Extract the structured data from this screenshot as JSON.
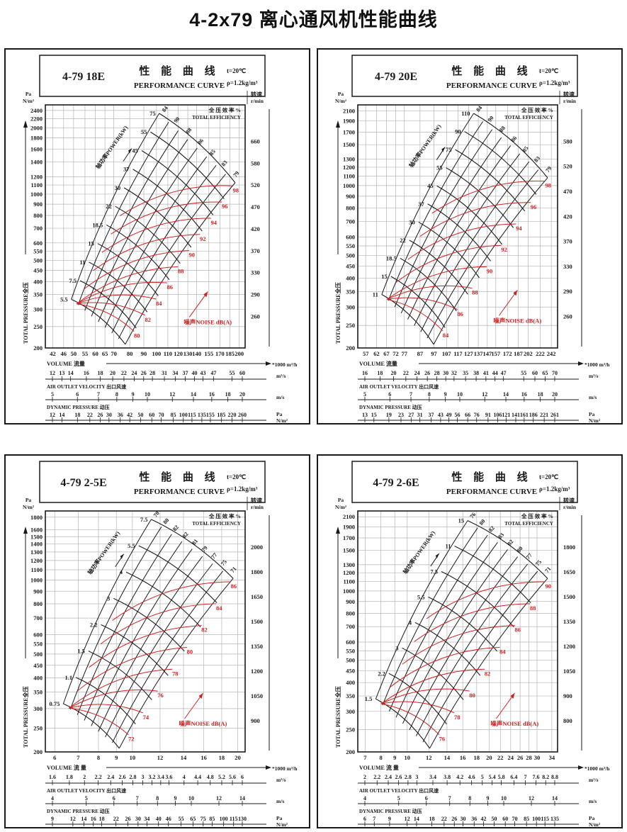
{
  "page": {
    "title": "4-2x79 离心通风机性能曲线"
  },
  "chart_data": [
    {
      "type": "line",
      "model": "4-79 18E",
      "title_cn": "性 能 曲 线",
      "title_en": "PERFORMANCE CURVE",
      "temperature": "t=20℃",
      "density": "ρ=1.2kg/m³",
      "x_scale": "log",
      "y_scale": "log",
      "grid": true,
      "series": [
        {
          "name": "performance-grid (speed/power mesh)",
          "color": "#1a1a1a"
        },
        {
          "name": "noise-contours",
          "color": "#cf2020"
        }
      ],
      "y_axis": {
        "unit_lines": [
          "Pa",
          "N/m²"
        ],
        "label": "TOTAL PRESSURE全压",
        "ticks": [
          2400,
          2200,
          2000,
          1800,
          1600,
          1400,
          1200,
          1100,
          1000,
          900,
          800,
          700,
          600,
          550,
          500,
          450,
          400,
          350,
          300,
          250,
          200
        ]
      },
      "x_axis": {
        "label": "VOLUME  流量",
        "unit": "*1000 m³/h",
        "ticks": [
          42,
          46,
          50,
          55,
          60,
          65,
          70,
          80,
          90,
          100,
          110,
          120,
          130,
          140,
          155,
          170,
          185,
          200
        ]
      },
      "right_axis": {
        "label_cn": "转速",
        "label_en": "r/min",
        "ticks": [
          660,
          580,
          520,
          470,
          420,
          370,
          330,
          290,
          260
        ]
      },
      "efficiency": {
        "header_cn": "全 压 效 率",
        "header_en": "TOTAL EFFICIENCY",
        "unit": "%",
        "labels": [
          "84",
          "90",
          "88",
          "86",
          "85",
          "83",
          "79"
        ]
      },
      "power": {
        "label": "轴功率POWER(kW)",
        "values": [
          "75",
          "55",
          "45",
          "37",
          "30",
          "22",
          "18.5",
          "15",
          "11",
          "7.5",
          "5.5"
        ]
      },
      "noise": {
        "label": "噪声NOISE dB(A)",
        "values": [
          "98",
          "96",
          "94",
          "92",
          "90",
          "88",
          "86",
          "84",
          "82",
          "80"
        ]
      },
      "flow_m3s": {
        "unit": "m³/s",
        "values": [
          12,
          13,
          14,
          16,
          18,
          20,
          22,
          24,
          26,
          28,
          31,
          34,
          37,
          40,
          43,
          47,
          55,
          60
        ]
      },
      "outlet_velocity": {
        "label": "AIR  OUTLET  VELOCITY  出口风速",
        "unit": "m/s",
        "values": [
          5,
          6,
          7,
          8,
          9,
          10,
          12,
          14,
          16,
          18,
          20
        ]
      },
      "dynamic_pressure": {
        "label": "DYNAMIC PRESSURE   动压",
        "unit_lines": [
          "Pa",
          "N/m²"
        ],
        "values": [
          12,
          14,
          18,
          22,
          26,
          30,
          36,
          42,
          50,
          60,
          70,
          85,
          100,
          115,
          135,
          155,
          185,
          220,
          260
        ]
      }
    },
    {
      "type": "line",
      "model": "4-79 20E",
      "title_cn": "性 能 曲 线",
      "title_en": "PERFORMANCE CURVE",
      "temperature": "t=20℃",
      "density": "ρ=1.2kg/m³",
      "x_scale": "log",
      "y_scale": "log",
      "grid": true,
      "series": [
        {
          "name": "performance-grid (speed/power mesh)",
          "color": "#1a1a1a"
        },
        {
          "name": "noise-contours",
          "color": "#cf2020"
        }
      ],
      "y_axis": {
        "unit_lines": [
          "Pa",
          "N/m²"
        ],
        "label": "TOTAL PRESSURE全压",
        "ticks": [
          2100,
          1900,
          1700,
          1500,
          1300,
          1200,
          1100,
          1000,
          900,
          800,
          700,
          600,
          550,
          500,
          450,
          400,
          350,
          300,
          250,
          200
        ]
      },
      "x_axis": {
        "label": "VOLUME  流量",
        "unit": "*1000 m³/h",
        "ticks": [
          57,
          62,
          67,
          72,
          77,
          87,
          97,
          107,
          117,
          127,
          137,
          147,
          157,
          172,
          187,
          202,
          222,
          242
        ]
      },
      "right_axis": {
        "label_cn": "转速",
        "label_en": "r/min",
        "ticks": [
          580,
          520,
          470,
          420,
          370,
          330,
          290,
          260
        ]
      },
      "efficiency": {
        "header_cn": "全 压 效 率",
        "header_en": "TOTAL EFFICIENCY",
        "unit": "%",
        "labels": [
          "84",
          "90",
          "88",
          "86",
          "85",
          "83",
          "79"
        ]
      },
      "power": {
        "label": "轴功率POWER(kW)",
        "values": [
          "110",
          "90",
          "75",
          "55",
          "45",
          "37",
          "30",
          "22",
          "18.5",
          "15",
          "11"
        ]
      },
      "noise": {
        "label": "噪声NOISE dB(A)",
        "values": [
          "98",
          "96",
          "94",
          "92",
          "90",
          "88",
          "86",
          "84"
        ]
      },
      "flow_m3s": {
        "unit": "m³/s",
        "values": [
          16,
          18,
          20,
          22,
          24,
          26,
          28,
          30,
          32,
          35,
          38,
          41,
          44,
          47,
          55,
          60,
          65,
          70
        ]
      },
      "outlet_velocity": {
        "label": "AIR  OUTLET  VELOCITY  出口风速",
        "unit": "m/s",
        "values": [
          5,
          6,
          7,
          8,
          9,
          10,
          12,
          14,
          16,
          18,
          20
        ]
      },
      "dynamic_pressure": {
        "label": "DYNAMIC PRESSURE   动压",
        "unit_lines": [
          "Pa",
          "N/m²"
        ],
        "values": [
          13,
          15,
          19,
          23,
          27,
          31,
          37,
          43,
          49,
          56,
          66,
          76,
          91,
          106,
          121,
          141,
          161,
          186,
          221,
          261
        ]
      }
    },
    {
      "type": "line",
      "model": "4-79 2-5E",
      "title_cn": "性 能 曲 线",
      "title_en": "PERFORMANCE CURVE",
      "temperature": "t=20℃",
      "density": "ρ=1.2kg/m³",
      "x_scale": "log",
      "y_scale": "log",
      "grid": true,
      "series": [
        {
          "name": "performance-grid (speed/power mesh)",
          "color": "#1a1a1a"
        },
        {
          "name": "noise-contours",
          "color": "#cf2020"
        }
      ],
      "y_axis": {
        "unit_lines": [
          "Pa",
          "N/m²"
        ],
        "label": "TOTAL PRESSURE全压",
        "ticks": [
          1800,
          1600,
          1500,
          1400,
          1300,
          1200,
          1100,
          1000,
          900,
          800,
          700,
          600,
          550,
          500,
          450,
          400,
          350,
          300,
          250,
          200
        ]
      },
      "x_axis": {
        "label": "VOLUME  流 量",
        "unit": "*1000 m³/h",
        "ticks": [
          6,
          7,
          8,
          9,
          10,
          12,
          14,
          16,
          18,
          20
        ]
      },
      "right_axis": {
        "label_cn": "转速",
        "label_en": "r/min",
        "ticks": [
          2000,
          1800,
          1650,
          1500,
          1350,
          1200,
          1050,
          900
        ]
      },
      "efficiency": {
        "header_cn": "全 压 效 率",
        "header_en": "TOTAL EFFICIENCY",
        "unit": "%",
        "labels": [
          "70",
          "80",
          "82",
          "82",
          "81",
          "79",
          "77",
          "75",
          "71"
        ]
      },
      "power": {
        "label": "轴功率POWER(kW)",
        "values": [
          "7.5",
          "5.5",
          "4",
          "3",
          "2.2",
          "1.5",
          "1.1",
          "0.75"
        ]
      },
      "noise": {
        "label": "噪声NOISE dB(A)",
        "values": [
          "86",
          "84",
          "82",
          "80",
          "78",
          "76",
          "74",
          "72"
        ]
      },
      "flow_m3s": {
        "unit": "m³/s",
        "values": [
          1.6,
          1.8,
          2,
          2.2,
          2.4,
          2.6,
          2.8,
          3,
          3.2,
          3.4,
          3.6,
          4,
          4.4,
          4.8,
          5.2,
          5.6,
          6
        ]
      },
      "outlet_velocity": {
        "label": "AIR  OUTLET  VELOCITY  出口风速",
        "unit": "m/s",
        "values": [
          4,
          5,
          6,
          7,
          8,
          9,
          10,
          12,
          14
        ]
      },
      "dynamic_pressure": {
        "label": "DYNAMIC PRESSURE   动压",
        "unit_lines": [
          "Pa",
          "N/m²"
        ],
        "values": [
          9,
          12,
          14,
          16,
          18,
          22,
          26,
          30,
          34,
          40,
          46,
          55,
          65,
          75,
          85,
          100,
          115,
          130
        ]
      }
    },
    {
      "type": "line",
      "model": "4-79 2-6E",
      "title_cn": "性 能 曲 线",
      "title_en": "PERFORMANCE CURVE",
      "temperature": "t=20℃",
      "density": "ρ=1.2kg/m³",
      "x_scale": "log",
      "y_scale": "log",
      "grid": true,
      "series": [
        {
          "name": "performance-grid (speed/power mesh)",
          "color": "#1a1a1a"
        },
        {
          "name": "noise-contours",
          "color": "#cf2020"
        }
      ],
      "y_axis": {
        "unit_lines": [
          "Pa",
          "N/m²"
        ],
        "label": "TOTAL PRESSURE全压",
        "ticks": [
          2100,
          1900,
          1700,
          1500,
          1300,
          1200,
          1100,
          1000,
          900,
          800,
          700,
          600,
          550,
          500,
          450,
          400,
          350,
          300,
          250,
          200
        ]
      },
      "x_axis": {
        "label": "VOLUME  流 量",
        "unit": "*1000 m³/h",
        "ticks": [
          7,
          8,
          9,
          10,
          12,
          14,
          16,
          18,
          20,
          22,
          24,
          26,
          28,
          30,
          34
        ]
      },
      "right_axis": {
        "label_cn": "转速",
        "label_en": "r/min",
        "ticks": [
          1800,
          1650,
          1500,
          1350,
          1200,
          1050,
          900,
          800
        ]
      },
      "efficiency": {
        "header_cn": "全 压 效 率",
        "header_en": "TOTAL EFFICIENCY",
        "unit": "%",
        "labels": [
          "76",
          "80",
          "82",
          "83",
          "82",
          "80",
          "77",
          "75",
          "71"
        ]
      },
      "power": {
        "label": "轴功率POWER(kW)",
        "values": [
          "15",
          "11",
          "7.5",
          "5.5",
          "4",
          "3",
          "2.2",
          "1.5"
        ]
      },
      "noise": {
        "label": "噪声NOISE dB(A)",
        "values": [
          "90",
          "88",
          "86",
          "84",
          "82",
          "80",
          "78",
          "76"
        ]
      },
      "flow_m3s": {
        "unit": "m³/s",
        "values": [
          2,
          2.2,
          2.4,
          2.6,
          2.8,
          3,
          3.4,
          3.8,
          4.2,
          4.6,
          5,
          5.4,
          5.8,
          6.4,
          7,
          7.6,
          8.2,
          8.8
        ]
      },
      "outlet_velocity": {
        "label": "AIR  OUTLET  VELOCITY  出口风速",
        "unit": "m/s",
        "values": [
          4,
          5,
          6,
          7,
          8,
          9,
          10,
          12,
          14
        ]
      },
      "dynamic_pressure": {
        "label": "DYNAMIC PRESSURE   动压",
        "unit_lines": [
          "Pa",
          "N/m²"
        ],
        "values": [
          6,
          7,
          9,
          12,
          14,
          18,
          22,
          26,
          30,
          36,
          42,
          50,
          60,
          70,
          85,
          100,
          115,
          135
        ]
      }
    }
  ]
}
